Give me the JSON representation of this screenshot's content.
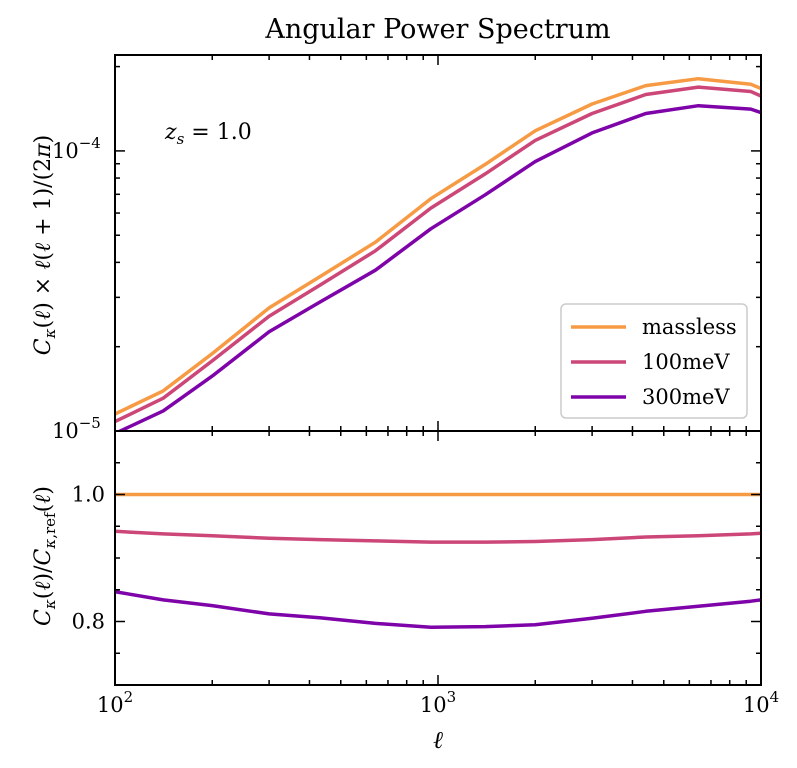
{
  "chart_data": [
    {
      "type": "line",
      "title": "Angular Power Spectrum",
      "xlabel": "",
      "ylabel": "C_κ(ℓ) × ℓ(ℓ + 1)/(2π)",
      "xscale": "log",
      "yscale": "log",
      "xlim": [
        100,
        10000
      ],
      "ylim": [
        1e-05,
        0.00022
      ],
      "grid": false,
      "legend": "lower-right",
      "annotation": "z_s = 1.0",
      "y_ticks": [
        {
          "value": 1e-05,
          "base": "10",
          "exp": "−5"
        },
        {
          "value": 0.0001,
          "base": "10",
          "exp": "−4"
        }
      ],
      "x": [
        100,
        141,
        200,
        300,
        430,
        640,
        950,
        1400,
        2000,
        3000,
        4400,
        6400,
        9300,
        10000
      ],
      "series": [
        {
          "name": "massless",
          "color": "#f79a44",
          "values": [
            1.15e-05,
            1.39e-05,
            1.89e-05,
            2.75e-05,
            3.55e-05,
            4.72e-05,
            6.75e-05,
            8.95e-05,
            0.000118,
            0.000147,
            0.000171,
            0.000181,
            0.000173,
            0.000167
          ]
        },
        {
          "name": "100meV",
          "color": "#cc4778",
          "values": [
            1.08e-05,
            1.31e-05,
            1.78e-05,
            2.57e-05,
            3.31e-05,
            4.4e-05,
            6.25e-05,
            8.28e-05,
            0.000109,
            0.000136,
            0.000159,
            0.000169,
            0.000163,
            0.000157
          ]
        },
        {
          "name": "300meV",
          "color": "#7e03a8",
          "values": [
            9.8e-06,
            1.18e-05,
            1.57e-05,
            2.26e-05,
            2.88e-05,
            3.75e-05,
            5.27e-05,
            6.97e-05,
            9.16e-05,
            0.000116,
            0.000136,
            0.000145,
            0.000141,
            0.000137
          ]
        }
      ]
    },
    {
      "type": "line",
      "title": "",
      "xlabel": "ℓ",
      "ylabel": "C_κ(ℓ)/C_κ,ref(ℓ)",
      "xscale": "log",
      "xlim": [
        100,
        10000
      ],
      "ylim": [
        0.7,
        1.1
      ],
      "grid": false,
      "x_ticks": [
        {
          "value": 100,
          "base": "10",
          "exp": "2"
        },
        {
          "value": 1000,
          "base": "10",
          "exp": "3"
        },
        {
          "value": 10000,
          "base": "10",
          "exp": "4"
        }
      ],
      "y_ticks": [
        {
          "value": 0.8,
          "label": "0.8"
        },
        {
          "value": 1.0,
          "label": "1.0"
        }
      ],
      "x": [
        100,
        141,
        200,
        300,
        430,
        640,
        950,
        1400,
        2000,
        3000,
        4400,
        6400,
        9300,
        10000
      ],
      "series": [
        {
          "name": "massless",
          "color": "#f79a44",
          "values": [
            1.0,
            1.0,
            1.0,
            1.0,
            1.0,
            1.0,
            1.0,
            1.0,
            1.0,
            1.0,
            1.0,
            1.0,
            1.0,
            1.0
          ]
        },
        {
          "name": "100meV",
          "color": "#cc4778",
          "values": [
            0.942,
            0.938,
            0.935,
            0.931,
            0.929,
            0.927,
            0.925,
            0.925,
            0.926,
            0.929,
            0.933,
            0.935,
            0.938,
            0.939
          ]
        },
        {
          "name": "300meV",
          "color": "#7e03a8",
          "values": [
            0.847,
            0.834,
            0.825,
            0.812,
            0.806,
            0.797,
            0.791,
            0.792,
            0.795,
            0.805,
            0.816,
            0.824,
            0.832,
            0.834
          ]
        }
      ]
    }
  ]
}
